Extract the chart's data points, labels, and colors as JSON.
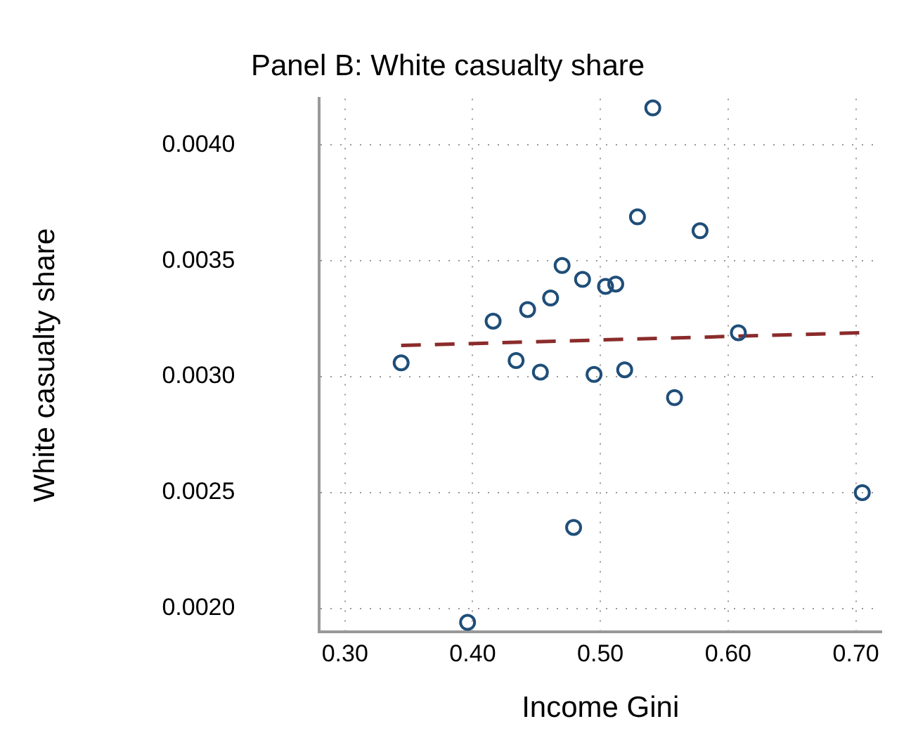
{
  "chart_data": {
    "type": "scatter",
    "title": "Panel B: White casualty share",
    "xlabel": "Income Gini",
    "ylabel": "White casualty share",
    "xlim": [
      0.28,
      0.72
    ],
    "ylim": [
      0.0019,
      0.0042
    ],
    "xticks": [
      {
        "value": 0.3,
        "label": "0.30"
      },
      {
        "value": 0.4,
        "label": "0.40"
      },
      {
        "value": 0.5,
        "label": "0.50"
      },
      {
        "value": 0.6,
        "label": "0.60"
      },
      {
        "value": 0.7,
        "label": "0.70"
      }
    ],
    "yticks": [
      {
        "value": 0.002,
        "label": "0.0020"
      },
      {
        "value": 0.0025,
        "label": "0.0025"
      },
      {
        "value": 0.003,
        "label": "0.0030"
      },
      {
        "value": 0.0035,
        "label": "0.0035"
      },
      {
        "value": 0.004,
        "label": "0.0040"
      }
    ],
    "grid": true,
    "legend": false,
    "marker": "circle",
    "series": [
      {
        "color": "#1f4e79",
        "x": [
          0.541,
          0.529,
          0.578,
          0.47,
          0.486,
          0.504,
          0.512,
          0.461,
          0.443,
          0.416,
          0.608,
          0.344,
          0.434,
          0.453,
          0.495,
          0.519,
          0.558,
          0.705,
          0.479,
          0.396
        ],
        "values": [
          0.00416,
          0.00369,
          0.00363,
          0.00348,
          0.00342,
          0.00339,
          0.0034,
          0.00334,
          0.00329,
          0.00324,
          0.00319,
          0.00306,
          0.00307,
          0.00302,
          0.00301,
          0.00303,
          0.00291,
          0.0025,
          0.00235,
          0.00194
        ]
      },
      {
        "type": "line",
        "color": "#8b2b2b",
        "line_style": "dashed",
        "marker": "none",
        "x": [
          0.344,
          0.705
        ],
        "values": [
          0.003135,
          0.00319
        ]
      }
    ]
  }
}
